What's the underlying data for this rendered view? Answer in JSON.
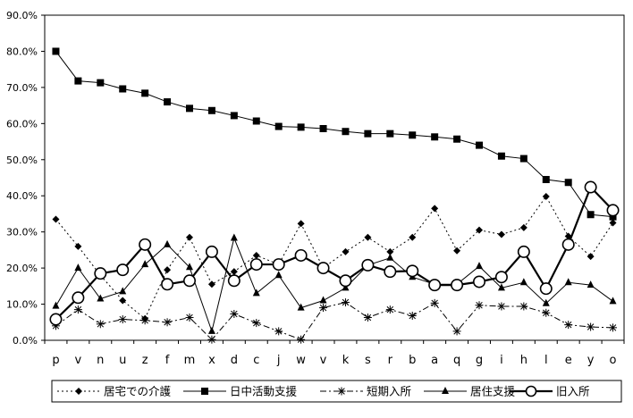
{
  "chart_data": {
    "type": "line",
    "title": "",
    "xlabel": "",
    "ylabel": "",
    "ylim": [
      0,
      90
    ],
    "y_ticks": [
      "0.0%",
      "10.0%",
      "20.0%",
      "30.0%",
      "40.0%",
      "50.0%",
      "60.0%",
      "70.0%",
      "80.0%",
      "90.0%"
    ],
    "grid": false,
    "legend_position": "bottom",
    "categories": [
      "p",
      "v",
      "n",
      "u",
      "z",
      "f",
      "m",
      "x",
      "d",
      "c",
      "j",
      "w",
      "v",
      "k",
      "s",
      "r",
      "b",
      "a",
      "q",
      "g",
      "i",
      "h",
      "l",
      "e",
      "y",
      "o"
    ],
    "series": [
      {
        "name": "居宅での介護",
        "color": "#000000",
        "line_style": "dotted",
        "marker": "diamond",
        "line_width": 1,
        "values": [
          33.5,
          26,
          18,
          11,
          6,
          19.5,
          28.5,
          15.5,
          19,
          23.5,
          21,
          32.3,
          20,
          24.5,
          28.5,
          24.5,
          28.5,
          36.5,
          24.8,
          30.5,
          29.3,
          31.2,
          39.8,
          28.8,
          23.2,
          32.5
        ]
      },
      {
        "name": "日中活動支援",
        "color": "#000000",
        "line_style": "solid",
        "marker": "square",
        "line_width": 1,
        "values": [
          80,
          71.8,
          71.3,
          69.6,
          68.4,
          66,
          64.2,
          63.6,
          62.2,
          60.7,
          59.2,
          59,
          58.6,
          57.8,
          57.2,
          57.2,
          56.8,
          56.3,
          55.7,
          54,
          51,
          50.3,
          44.5,
          43.7,
          34.8,
          34.2
        ]
      },
      {
        "name": "短期入所",
        "color": "#000000",
        "line_style": "dashdot",
        "marker": "asterisk",
        "line_width": 1,
        "values": [
          4,
          8.5,
          4.5,
          5.8,
          5.5,
          5,
          6.3,
          0.2,
          7.3,
          4.8,
          2.5,
          0.2,
          9,
          10.5,
          6.3,
          8.5,
          6.8,
          10.3,
          2.5,
          9.7,
          9.4,
          9.4,
          7.6,
          4.3,
          3.7,
          3.5
        ]
      },
      {
        "name": "居住支援",
        "color": "#000000",
        "line_style": "solid",
        "marker": "triangle",
        "line_width": 1,
        "values": [
          9.5,
          20,
          11.5,
          13.5,
          21,
          26.5,
          20.2,
          2.5,
          28.3,
          13,
          18,
          9,
          11,
          14.5,
          20.8,
          22.8,
          17.5,
          15.5,
          15.5,
          20.5,
          14.5,
          16,
          10.2,
          16,
          15.3,
          10.8
        ]
      },
      {
        "name": "旧入所",
        "color": "#000000",
        "line_style": "solid",
        "marker": "circle",
        "line_width": 2.2,
        "values": [
          5.8,
          11.8,
          18.5,
          19.5,
          26.5,
          15.5,
          16.5,
          24.5,
          16.5,
          21,
          21,
          23.5,
          20,
          16.5,
          20.8,
          19,
          19.2,
          15.3,
          15.3,
          16.2,
          17.5,
          24.5,
          14.3,
          26.5,
          42.4,
          36
        ]
      }
    ]
  }
}
